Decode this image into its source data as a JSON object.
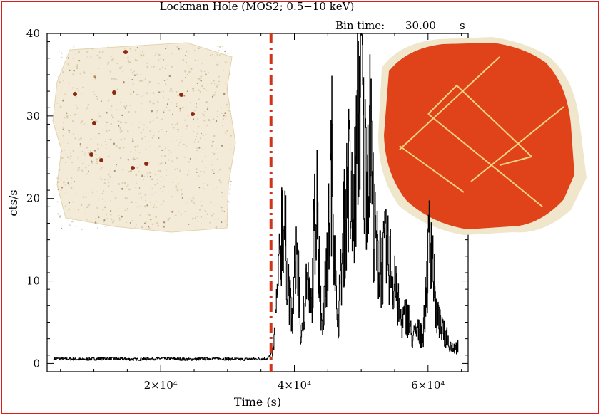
{
  "colors": {
    "frame": "#e01b1b",
    "marker": "#d0341a",
    "curve": "#000000",
    "inset_left_bg": "#f3ebd8",
    "inset_right_bg": "#e0431a"
  },
  "chart_data": {
    "type": "line",
    "title": "Lockman Hole (MOS2; 0.5−10 keV)",
    "bin_time": {
      "label": "Bin time:",
      "value": "30.00",
      "unit": "s"
    },
    "xlabel": "Time (s)",
    "ylabel": "cts/s",
    "xlim": [
      3000,
      66000
    ],
    "ylim": [
      -1,
      40
    ],
    "xticks": [
      {
        "value": 20000,
        "label": "2×10⁴"
      },
      {
        "value": 40000,
        "label": "4×10⁴"
      },
      {
        "value": 60000,
        "label": "6×10⁴"
      }
    ],
    "yticks": [
      {
        "value": 0,
        "label": "0"
      },
      {
        "value": 10,
        "label": "10"
      },
      {
        "value": 20,
        "label": "20"
      },
      {
        "value": 30,
        "label": "30"
      },
      {
        "value": 40,
        "label": "40"
      }
    ],
    "cutoff_time": 36500,
    "series": [
      {
        "x": [
          4000,
          8000,
          12000,
          16000,
          20000,
          24000,
          28000,
          32000,
          36000,
          36800,
          37600,
          38200,
          38900,
          39600,
          40300,
          41000,
          41800,
          42500,
          43200,
          44000,
          44800,
          45600,
          46400,
          47200,
          48000,
          48800,
          49600,
          50000,
          50400,
          51200,
          52000,
          52800,
          53600,
          54400,
          55200,
          56000,
          56800,
          57600,
          58400,
          59200,
          59800,
          60400,
          61200,
          62000,
          62800,
          63600,
          64500
        ],
        "y": [
          0.6,
          0.5,
          0.6,
          0.5,
          0.6,
          0.5,
          0.6,
          0.5,
          0.6,
          1.5,
          9,
          19,
          12,
          4,
          15,
          2,
          11,
          6,
          21,
          5,
          10,
          25,
          3,
          14,
          22,
          16,
          31,
          37,
          23,
          28,
          15,
          11,
          13,
          12,
          8,
          5,
          6,
          3,
          4,
          3,
          10,
          16,
          6,
          4,
          3,
          2,
          2
        ]
      }
    ]
  },
  "insets": [
    {
      "name": "inset-image-soft-band",
      "description_icon": "sky-image-mosaic"
    },
    {
      "name": "inset-image-flare",
      "description_icon": "sky-image-mosaic-flare"
    }
  ]
}
